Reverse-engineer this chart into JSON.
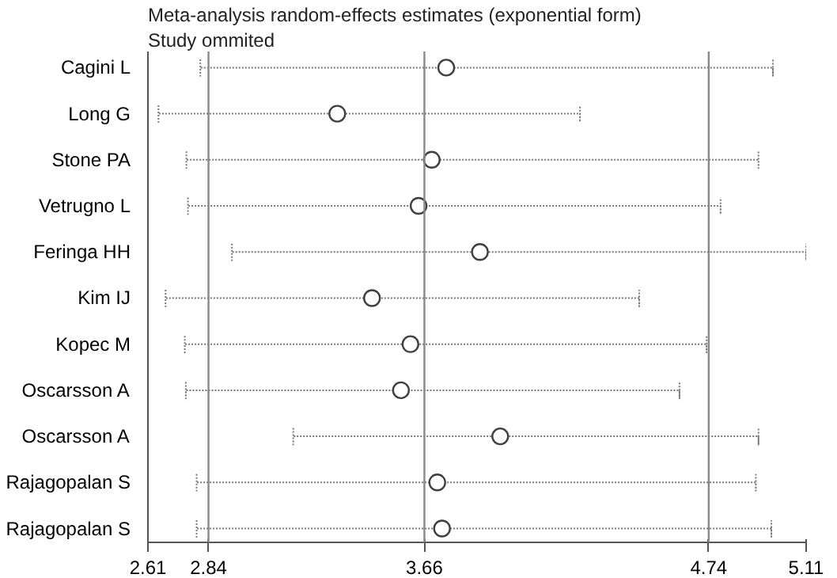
{
  "chart_data": {
    "type": "scatter",
    "orientation": "horizontal",
    "title": "Meta-analysis random-effects estimates (exponential form)",
    "subtitle": "Study ommited",
    "categories": [
      "Cagini L",
      "Long G",
      "Stone PA",
      "Vetrugno L",
      "Feringa HH",
      "Kim IJ",
      "Kopec M",
      "Oscarsson A",
      "Oscarsson A",
      "Rajagopalan S",
      "Rajagopalan S"
    ],
    "values": [
      3.743,
      3.329,
      3.688,
      3.638,
      3.871,
      3.461,
      3.607,
      3.571,
      3.948,
      3.709,
      3.727
    ],
    "errors": [
      [
        2.809,
        4.984
      ],
      [
        2.65,
        4.251
      ],
      [
        2.756,
        4.929
      ],
      [
        2.762,
        4.785
      ],
      [
        2.929,
        5.11
      ],
      [
        2.677,
        4.476
      ],
      [
        2.75,
        4.732
      ],
      [
        2.754,
        4.629
      ],
      [
        3.162,
        4.929
      ],
      [
        2.795,
        4.919
      ],
      [
        2.795,
        4.978
      ]
    ],
    "color": "#404040",
    "marker": "circle",
    "line_style": "dotted",
    "xlim": [
      2.61,
      5.11
    ],
    "xticks": [
      2.61,
      2.84,
      3.66,
      4.74,
      5.11
    ],
    "ref_lines": [
      {
        "axis": "x",
        "value": 2.84
      },
      {
        "axis": "x",
        "value": 3.66
      },
      {
        "axis": "x",
        "value": 4.74
      }
    ],
    "grid": false
  }
}
